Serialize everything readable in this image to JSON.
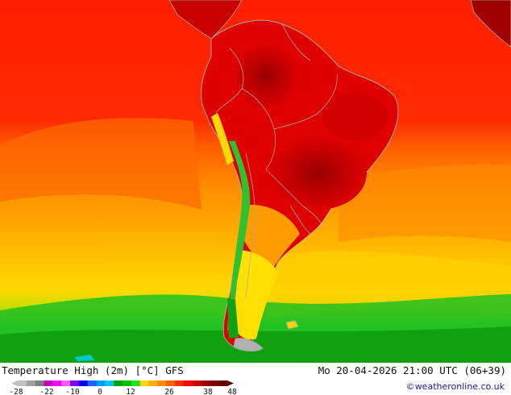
{
  "map": {
    "title": "Temperature High (2m) [°C] GFS",
    "valid_time": "Mo 20-04-2026 21:00 UTC (06+39)",
    "credit": "©weatheronline.co.uk",
    "region": "South America",
    "colors": {
      "hot_dark": "#8b0000",
      "hot": "#e00000",
      "red": "#ff2400",
      "orange": "#ff8c00",
      "yellow": "#ffd700",
      "green": "#18c018",
      "cold_green": "#009000",
      "boundaries": "#a8a8a8"
    }
  },
  "legend": {
    "tick_labels": [
      "-28",
      "-22",
      "-10",
      "0",
      "12",
      "26",
      "38",
      "48"
    ],
    "colors": [
      "#c0c0c0",
      "#a0a0a0",
      "#808080",
      "#c000c0",
      "#ff00ff",
      "#ff60ff",
      "#8000ff",
      "#0000ff",
      "#2060ff",
      "#00a0ff",
      "#00c8ff",
      "#00a000",
      "#00c000",
      "#20e020",
      "#ffd700",
      "#ffb000",
      "#ff8c00",
      "#ff6000",
      "#ff3000",
      "#ff0000",
      "#d00000",
      "#a00000",
      "#800000",
      "#600000"
    ]
  }
}
